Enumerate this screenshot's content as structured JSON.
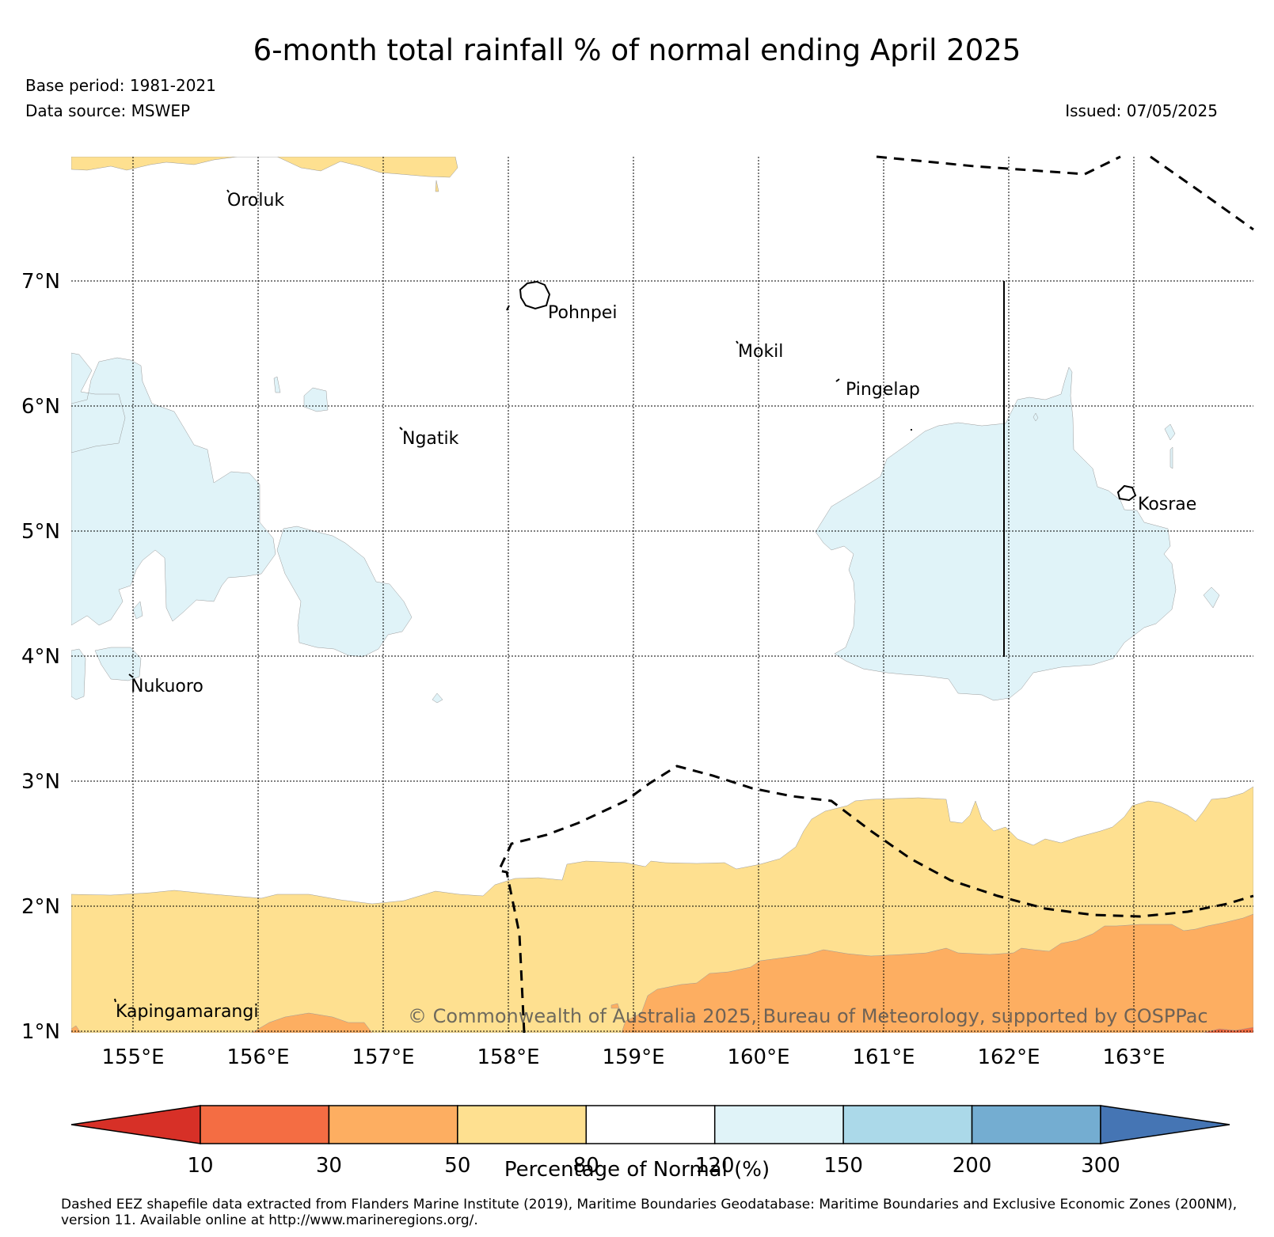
{
  "title": "6-month total rainfall % of normal ending April 2025",
  "base_period": "Base period: 1981-2021",
  "data_source": "Data source: MSWEP",
  "issued": "Issued: 07/05/2025",
  "copyright": "© Commonwealth of Australia 2025, Bureau of Meteorology, supported by COSPPac",
  "lat_labels": [
    "7°N",
    "6°N",
    "5°N",
    "4°N",
    "3°N",
    "2°N",
    "1°N"
  ],
  "lon_labels": [
    "155°E",
    "156°E",
    "157°E",
    "158°E",
    "159°E",
    "160°E",
    "161°E",
    "162°E",
    "163°E"
  ],
  "places": [
    {
      "name": "Oroluk"
    },
    {
      "name": "Pohnpei"
    },
    {
      "name": "Mokil"
    },
    {
      "name": "Pingelap"
    },
    {
      "name": "Ngatik"
    },
    {
      "name": "Kosrae"
    },
    {
      "name": "Nukuoro"
    },
    {
      "name": "Kapingamarangi"
    }
  ],
  "colorbar": {
    "title": "Percentage of Normal (%)",
    "ticks": [
      "10",
      "30",
      "50",
      "80",
      "120",
      "150",
      "200",
      "300"
    ],
    "colors": [
      "#d73027",
      "#f46d43",
      "#fdae61",
      "#fee090",
      "#ffffff",
      "#e0f3f8",
      "#abd9e9",
      "#74add1",
      "#4575b4"
    ]
  },
  "footnote": "Dashed EEZ shapefile data extracted from Flanders Marine Institute (2019), Maritime Boundaries Geodatabase: Maritime Boundaries and Exclusive Economic Zones (200NM), version 11. Available online at http://www.marineregions.org/."
}
